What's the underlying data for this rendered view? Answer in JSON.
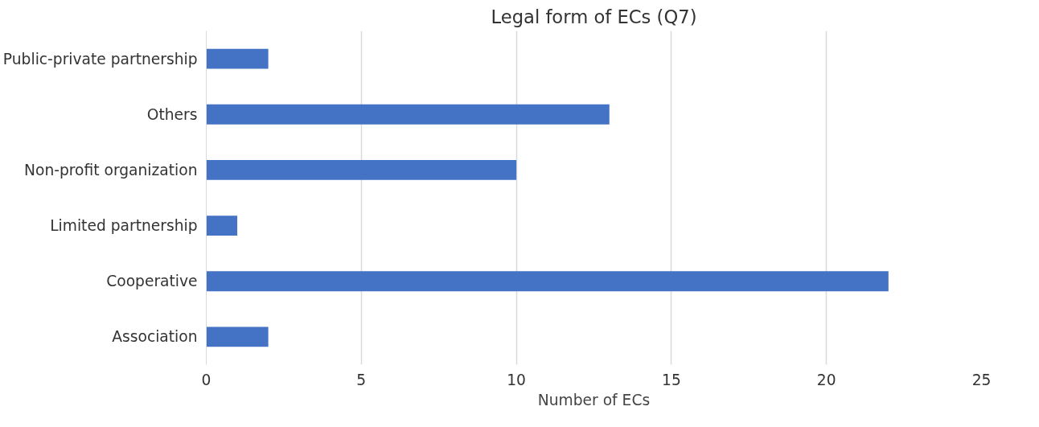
{
  "chart_data": {
    "type": "bar",
    "orientation": "horizontal",
    "title": "Legal form of ECs (Q7)",
    "xlabel": "Number of ECs",
    "categories": [
      "Public-private partnership",
      "Others",
      "Non-profit organization",
      "Limited partnership",
      "Cooperative",
      "Association"
    ],
    "values": [
      2,
      13,
      10,
      1,
      22,
      2
    ],
    "color": "#4472c4",
    "xlim": [
      0,
      25
    ],
    "xticks": [
      0,
      5,
      10,
      15,
      20,
      25
    ],
    "grid": "x"
  }
}
